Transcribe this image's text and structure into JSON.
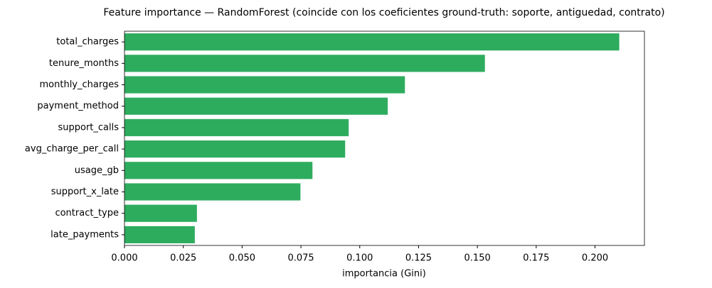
{
  "chart_data": {
    "type": "barh",
    "title": "Feature importance — RandomForest (coincide con los coeficientes ground-truth: soporte, antiguedad, contrato)",
    "x_label": "importancia (Gini)",
    "categories": [
      "total_charges",
      "tenure_months",
      "monthly_charges",
      "payment_method",
      "support_calls",
      "avg_charge_per_call",
      "usage_gb",
      "support_x_late",
      "contract_type",
      "late_payments"
    ],
    "values": [
      0.2103,
      0.1532,
      0.1192,
      0.1119,
      0.0953,
      0.0938,
      0.0799,
      0.0748,
      0.0308,
      0.0299
    ],
    "color": "#2eac5e",
    "xlim": [
      0,
      0.221
    ],
    "xticks": [
      {
        "value": 0,
        "label": "0.000"
      },
      {
        "value": 0.025,
        "label": "0.025"
      },
      {
        "value": 0.05,
        "label": "0.050"
      },
      {
        "value": 0.075,
        "label": "0.075"
      },
      {
        "value": 0.1,
        "label": "0.100"
      },
      {
        "value": 0.125,
        "label": "0.125"
      },
      {
        "value": 0.15,
        "label": "0.150"
      },
      {
        "value": 0.175,
        "label": "0.175"
      },
      {
        "value": 0.2,
        "label": "0.200"
      }
    ],
    "grid": false
  }
}
